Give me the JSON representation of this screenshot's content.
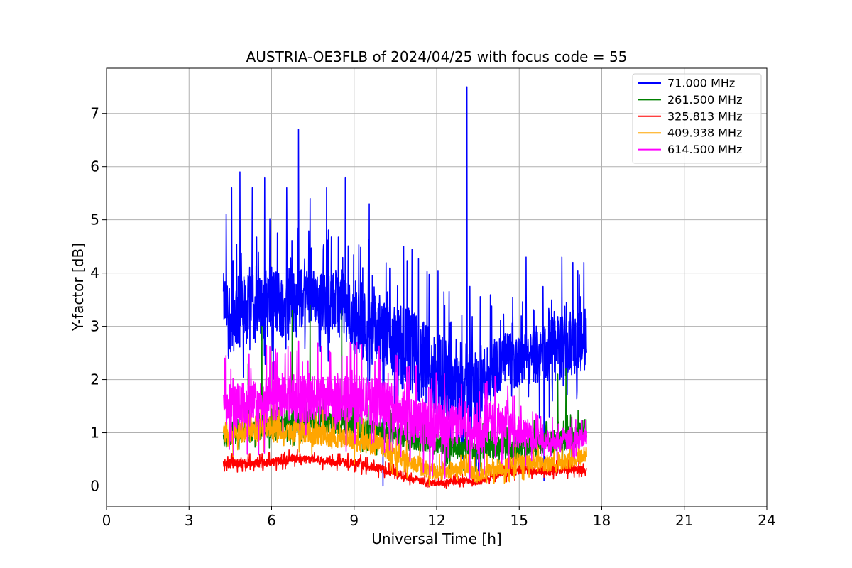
{
  "chart_data": {
    "type": "line",
    "title": "AUSTRIA-OE3FLB of 2024/04/25 with focus code = 55",
    "xlabel": "Universal Time [h]",
    "ylabel": "Y-factor [dB]",
    "xlim": [
      0,
      24
    ],
    "ylim": [
      -0.38,
      7.85
    ],
    "xticks": [
      0,
      3,
      6,
      9,
      12,
      15,
      18,
      21,
      24
    ],
    "yticks": [
      0,
      1,
      2,
      3,
      4,
      5,
      6,
      7
    ],
    "grid": true,
    "legend_position": "top-right",
    "series": [
      {
        "name": "71.000 MHz",
        "legend_label": "  71.000 MHz",
        "color": "#0000ff",
        "x": [
          4.25,
          4.5,
          5.0,
          5.5,
          6.0,
          6.5,
          7.0,
          7.5,
          8.0,
          8.5,
          9.0,
          9.5,
          10.0,
          10.5,
          11.0,
          11.5,
          12.0,
          12.5,
          13.0,
          13.5,
          14.0,
          14.5,
          15.0,
          15.5,
          16.0,
          16.5,
          17.0,
          17.45
        ],
        "values": [
          3.5,
          3.2,
          3.3,
          3.3,
          3.5,
          3.4,
          3.5,
          3.6,
          3.4,
          3.5,
          3.1,
          3.0,
          2.9,
          2.7,
          2.6,
          2.3,
          2.1,
          2.0,
          1.9,
          1.8,
          2.2,
          2.4,
          2.3,
          2.4,
          2.5,
          2.6,
          2.7,
          2.7
        ],
        "band": [
          0.5,
          0.7,
          0.7,
          0.6,
          0.7,
          0.6,
          0.6,
          0.5,
          0.6,
          0.6,
          0.6,
          0.7,
          0.7,
          0.7,
          0.8,
          0.8,
          0.8,
          0.8,
          0.8,
          0.8,
          0.6,
          0.5,
          0.5,
          0.5,
          0.6,
          0.6,
          0.6,
          0.5
        ],
        "spikes": [
          {
            "x": 4.35,
            "y": 5.1
          },
          {
            "x": 4.55,
            "y": 5.6
          },
          {
            "x": 4.85,
            "y": 5.9
          },
          {
            "x": 5.3,
            "y": 5.6
          },
          {
            "x": 5.75,
            "y": 5.8
          },
          {
            "x": 6.55,
            "y": 5.6
          },
          {
            "x": 6.98,
            "y": 6.7
          },
          {
            "x": 7.4,
            "y": 5.4
          },
          {
            "x": 8.0,
            "y": 5.6
          },
          {
            "x": 8.68,
            "y": 5.8
          },
          {
            "x": 9.55,
            "y": 5.3
          },
          {
            "x": 10.8,
            "y": 4.5
          },
          {
            "x": 12.05,
            "y": 4.05
          },
          {
            "x": 13.1,
            "y": 7.5
          },
          {
            "x": 15.25,
            "y": 4.3
          },
          {
            "x": 16.55,
            "y": 4.3
          },
          {
            "x": 16.95,
            "y": 4.2
          },
          {
            "x": 17.35,
            "y": 4.2
          }
        ],
        "dips": [
          {
            "x": 10.05,
            "y": 0.0
          },
          {
            "x": 12.8,
            "y": 0.6
          },
          {
            "x": 15.9,
            "y": 0.1
          }
        ]
      },
      {
        "name": "261.500 MHz",
        "legend_label": "  261.500 MHz",
        "color": "#008000",
        "x": [
          4.25,
          5.0,
          6.0,
          7.0,
          8.0,
          9.0,
          10.0,
          11.0,
          12.0,
          13.0,
          14.0,
          15.0,
          16.0,
          17.0,
          17.45
        ],
        "values": [
          0.9,
          1.0,
          1.1,
          1.2,
          1.2,
          1.1,
          1.0,
          0.9,
          0.8,
          0.7,
          0.7,
          0.7,
          0.8,
          0.9,
          1.1
        ],
        "band": [
          0.15,
          0.2,
          0.2,
          0.2,
          0.2,
          0.2,
          0.2,
          0.2,
          0.2,
          0.2,
          0.2,
          0.2,
          0.2,
          0.2,
          0.2
        ],
        "spikes": [
          {
            "x": 5.15,
            "y": 2.3
          },
          {
            "x": 5.65,
            "y": 3.0
          },
          {
            "x": 6.75,
            "y": 3.3
          },
          {
            "x": 7.4,
            "y": 3.4
          },
          {
            "x": 8.55,
            "y": 3.3
          },
          {
            "x": 16.4,
            "y": 2.1
          },
          {
            "x": 16.7,
            "y": 2.2
          }
        ],
        "dips": []
      },
      {
        "name": "325.813 MHz",
        "legend_label": "  325.813 MHz",
        "color": "#ff0000",
        "x": [
          4.25,
          5.0,
          6.0,
          7.0,
          8.0,
          9.0,
          10.0,
          10.5,
          11.0,
          11.5,
          12.0,
          12.5,
          13.0,
          13.5,
          14.0,
          15.0,
          16.0,
          17.0,
          17.45
        ],
        "values": [
          0.42,
          0.42,
          0.45,
          0.52,
          0.47,
          0.42,
          0.32,
          0.25,
          0.15,
          0.08,
          0.05,
          0.08,
          0.1,
          0.06,
          0.18,
          0.3,
          0.28,
          0.32,
          0.28
        ],
        "band": [
          0.08,
          0.08,
          0.08,
          0.08,
          0.08,
          0.08,
          0.08,
          0.08,
          0.07,
          0.06,
          0.05,
          0.06,
          0.06,
          0.05,
          0.07,
          0.08,
          0.08,
          0.08,
          0.08
        ],
        "spikes": [],
        "dips": []
      },
      {
        "name": "409.938 MHz",
        "legend_label": "  409.938 MHz",
        "color": "#ffa500",
        "x": [
          4.25,
          5.0,
          6.0,
          7.0,
          8.0,
          9.0,
          10.0,
          10.5,
          11.0,
          11.5,
          12.0,
          12.5,
          13.0,
          13.5,
          14.0,
          15.0,
          16.0,
          17.0,
          17.45
        ],
        "values": [
          1.0,
          1.0,
          1.1,
          1.0,
          0.95,
          0.85,
          0.75,
          0.6,
          0.45,
          0.35,
          0.25,
          0.3,
          0.35,
          0.2,
          0.3,
          0.45,
          0.4,
          0.5,
          0.6
        ],
        "band": [
          0.2,
          0.2,
          0.2,
          0.2,
          0.2,
          0.2,
          0.2,
          0.2,
          0.18,
          0.16,
          0.15,
          0.15,
          0.15,
          0.15,
          0.15,
          0.15,
          0.15,
          0.15,
          0.15
        ],
        "spikes": [],
        "dips": []
      },
      {
        "name": "614.500 MHz",
        "legend_label": "  614.500 MHz",
        "color": "#ff00ff",
        "x": [
          4.25,
          5.0,
          6.0,
          7.0,
          8.0,
          9.0,
          10.0,
          10.5,
          11.0,
          11.5,
          12.0,
          12.5,
          13.0,
          13.5,
          14.0,
          14.5,
          15.0,
          16.0,
          17.0,
          17.45
        ],
        "values": [
          1.5,
          1.5,
          1.6,
          1.65,
          1.6,
          1.65,
          1.55,
          1.45,
          1.3,
          1.2,
          1.1,
          1.2,
          1.15,
          1.0,
          1.2,
          1.1,
          1.0,
          0.85,
          0.85,
          0.95
        ],
        "band": [
          0.4,
          0.45,
          0.45,
          0.45,
          0.45,
          0.45,
          0.45,
          0.45,
          0.45,
          0.45,
          0.45,
          0.45,
          0.45,
          0.45,
          0.4,
          0.35,
          0.3,
          0.2,
          0.2,
          0.15
        ],
        "spikes": [
          {
            "x": 9.1,
            "y": 2.7
          },
          {
            "x": 6.2,
            "y": 2.5
          },
          {
            "x": 4.3,
            "y": 2.4
          }
        ],
        "dips": [
          {
            "x": 12.3,
            "y": 0.15
          },
          {
            "x": 13.55,
            "y": 0.2
          }
        ]
      }
    ]
  }
}
